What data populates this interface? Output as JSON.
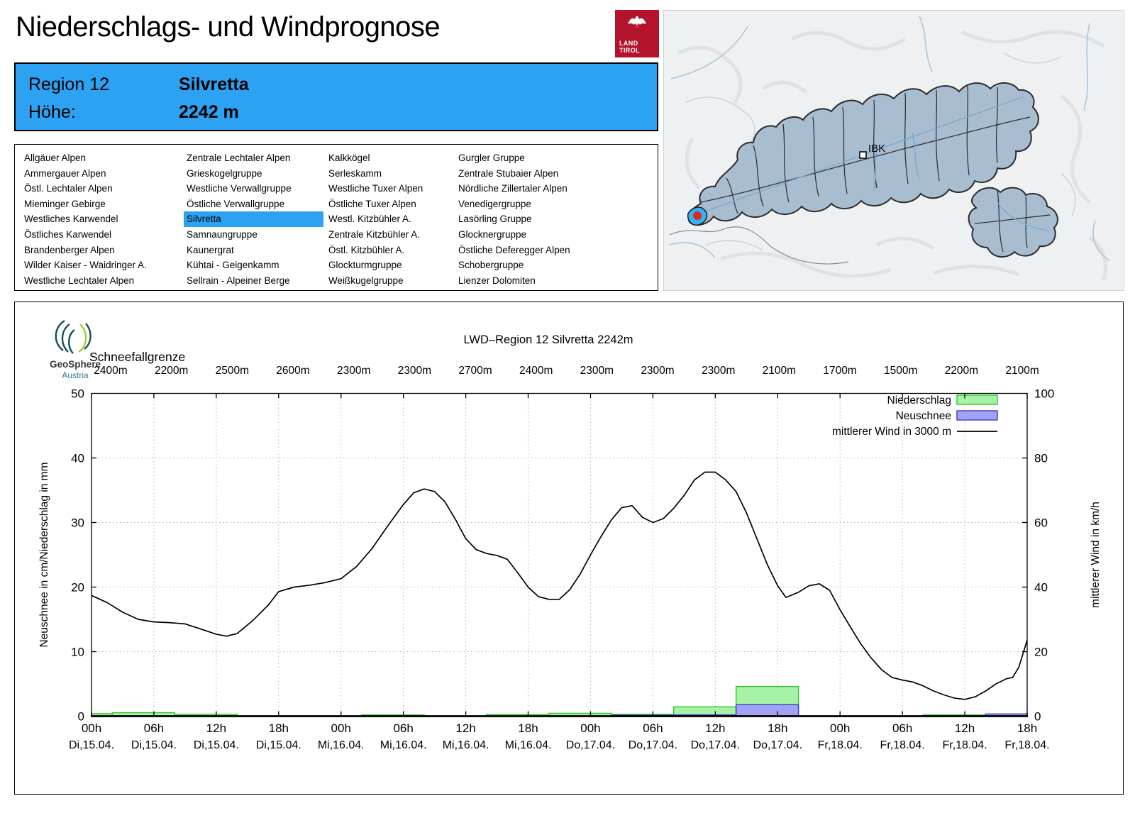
{
  "page": {
    "title": "Niederschlags- und Windprognose"
  },
  "logo_tirol": {
    "line1": "LAND",
    "line2": "TIROL"
  },
  "region_header": {
    "region_label": "Region 12",
    "region_name": "Silvretta",
    "altitude_label": "Höhe:",
    "altitude_value": "2242 m"
  },
  "region_list": {
    "selected": "Silvretta",
    "columns": [
      [
        "Allgäuer Alpen",
        "Ammergauer Alpen",
        "Östl. Lechtaler Alpen",
        "Mieminger Gebirge",
        "Westliches Karwendel",
        "Östliches Karwendel",
        "Brandenberger Alpen",
        "Wilder Kaiser - Waidringer A.",
        "Westliche Lechtaler Alpen"
      ],
      [
        "Zentrale Lechtaler Alpen",
        "Grieskogelgruppe",
        "Westliche Verwallgruppe",
        "Östliche Verwallgruppe",
        "Silvretta",
        "Samnaungruppe",
        "Kaunergrat",
        "Kühtai - Geigenkamm",
        "Sellrain - Alpeiner Berge"
      ],
      [
        "Kalkkögel",
        "Serleskamm",
        "Westliche Tuxer Alpen",
        "Östliche Tuxer Alpen",
        "Westl. Kitzbühler A.",
        "Zentrale Kitzbühler A.",
        "Östl. Kitzbühler A.",
        "Glockturmgruppe",
        "Weißkugelgruppe"
      ],
      [
        "Gurgler Gruppe",
        "Zentrale Stubaier Alpen",
        "Nördliche Zillertaler Alpen",
        "Venedigergruppe",
        "Lasörling Gruppe",
        "Glocknergruppe",
        "Östliche Deferegger Alpen",
        "Schobergruppe",
        "Lienzer Dolomiten"
      ]
    ]
  },
  "map": {
    "label_ibk": "IBK"
  },
  "geosphere": {
    "name": "GeoSphere",
    "sub": "Austria"
  },
  "colors": {
    "accent": "#2da2f2",
    "map_region_fill": "#a9bdd1",
    "map_highlight": "#35b1f5",
    "map_marker_red": "#e02818",
    "tirol_red": "#b3132b"
  },
  "chart_data": {
    "type": "bar+line",
    "title": "LWD–Region 12 Silvretta 2242m",
    "snowline_label": "Schneefallgrenze",
    "snowline_values": [
      "2400m",
      "2200m",
      "2500m",
      "2600m",
      "2300m",
      "2300m",
      "2700m",
      "2400m",
      "2300m",
      "2300m",
      "2300m",
      "2100m",
      "1700m",
      "1500m",
      "2200m",
      "2100m"
    ],
    "ylabel_left": "Neuschnee in cm/Niederschlag in mm",
    "ylabel_right": "mittlerer Wind in km/h",
    "ylim_left": [
      0,
      50
    ],
    "ylim_right": [
      0,
      100
    ],
    "yticks_left": [
      0,
      10,
      20,
      30,
      40,
      50
    ],
    "yticks_right": [
      0,
      20,
      40,
      60,
      80,
      100
    ],
    "xlim_hours": [
      0,
      90
    ],
    "grid": "dotted",
    "legend_position": "top-right",
    "xticks": [
      {
        "hour": 0,
        "time": "00h",
        "date": "Di,15.04."
      },
      {
        "hour": 6,
        "time": "06h",
        "date": "Di,15.04."
      },
      {
        "hour": 12,
        "time": "12h",
        "date": "Di,15.04."
      },
      {
        "hour": 18,
        "time": "18h",
        "date": "Di,15.04."
      },
      {
        "hour": 24,
        "time": "00h",
        "date": "Mi,16.04."
      },
      {
        "hour": 30,
        "time": "06h",
        "date": "Mi,16.04."
      },
      {
        "hour": 36,
        "time": "12h",
        "date": "Mi,16.04."
      },
      {
        "hour": 42,
        "time": "18h",
        "date": "Mi,16.04."
      },
      {
        "hour": 48,
        "time": "00h",
        "date": "Do,17.04."
      },
      {
        "hour": 54,
        "time": "06h",
        "date": "Do,17.04."
      },
      {
        "hour": 60,
        "time": "12h",
        "date": "Do,17.04."
      },
      {
        "hour": 66,
        "time": "18h",
        "date": "Do,17.04."
      },
      {
        "hour": 72,
        "time": "00h",
        "date": "Fr,18.04."
      },
      {
        "hour": 78,
        "time": "06h",
        "date": "Fr,18.04."
      },
      {
        "hour": 84,
        "time": "12h",
        "date": "Fr,18.04."
      },
      {
        "hour": 90,
        "time": "18h",
        "date": "Fr,18.04."
      }
    ],
    "legend": [
      {
        "label": "Niederschlag",
        "type": "box",
        "fill": "#a8f2a8",
        "stroke": "#2ec62e"
      },
      {
        "label": "Neuschnee",
        "type": "box",
        "fill": "#a2a2f2",
        "stroke": "#3a3ad0"
      },
      {
        "label": "mittlerer Wind in 3000 m",
        "type": "line",
        "stroke": "#000000"
      }
    ],
    "colors": {
      "niederschlag_fill": "#a8f2a8",
      "niederschlag_stroke": "#2ec62e",
      "neuschnee_fill": "#a2a2f2",
      "neuschnee_stroke": "#3a3ad0",
      "wind": "#000000",
      "grid": "#b4b4b4"
    },
    "precip_bars": [
      {
        "from_h": 0,
        "to_h": 2,
        "niederschlag_mm": 0.4,
        "neuschnee_cm": 0
      },
      {
        "from_h": 2,
        "to_h": 8,
        "niederschlag_mm": 0.55,
        "neuschnee_cm": 0
      },
      {
        "from_h": 8,
        "to_h": 14,
        "niederschlag_mm": 0.3,
        "neuschnee_cm": 0
      },
      {
        "from_h": 26,
        "to_h": 32,
        "niederschlag_mm": 0.2,
        "neuschnee_cm": 0
      },
      {
        "from_h": 38,
        "to_h": 44,
        "niederschlag_mm": 0.25,
        "neuschnee_cm": 0
      },
      {
        "from_h": 44,
        "to_h": 50,
        "niederschlag_mm": 0.45,
        "neuschnee_cm": 0
      },
      {
        "from_h": 50,
        "to_h": 56,
        "niederschlag_mm": 0.3,
        "neuschnee_cm": 0.15
      },
      {
        "from_h": 56,
        "to_h": 62,
        "niederschlag_mm": 1.45,
        "neuschnee_cm": 0.2
      },
      {
        "from_h": 62,
        "to_h": 68,
        "niederschlag_mm": 4.6,
        "neuschnee_cm": 1.8
      },
      {
        "from_h": 80,
        "to_h": 86,
        "niederschlag_mm": 0.2,
        "neuschnee_cm": 0
      },
      {
        "from_h": 86,
        "to_h": 90,
        "niederschlag_mm": 0.2,
        "neuschnee_cm": 0.35
      }
    ],
    "wind_line_kmh": [
      [
        0,
        37.4
      ],
      [
        1.5,
        35.2
      ],
      [
        3,
        32.2
      ],
      [
        4.5,
        30
      ],
      [
        6,
        29.2
      ],
      [
        7.5,
        29
      ],
      [
        9,
        28.6
      ],
      [
        10.5,
        27
      ],
      [
        12,
        25.4
      ],
      [
        13,
        24.8
      ],
      [
        14,
        25.6
      ],
      [
        15.5,
        29.6
      ],
      [
        17,
        34.4
      ],
      [
        18,
        38.6
      ],
      [
        19.5,
        40
      ],
      [
        21,
        40.6
      ],
      [
        22.5,
        41.4
      ],
      [
        24,
        42.6
      ],
      [
        25.5,
        46.4
      ],
      [
        27,
        52
      ],
      [
        28.5,
        59
      ],
      [
        30,
        65.6
      ],
      [
        31,
        69.2
      ],
      [
        32,
        70.4
      ],
      [
        33,
        69.6
      ],
      [
        34,
        66.4
      ],
      [
        35,
        61
      ],
      [
        36,
        55
      ],
      [
        37,
        51.6
      ],
      [
        38,
        50.4
      ],
      [
        39,
        49.8
      ],
      [
        40,
        48.6
      ],
      [
        41,
        44.4
      ],
      [
        42,
        40
      ],
      [
        43,
        37
      ],
      [
        44,
        36.2
      ],
      [
        45,
        36.2
      ],
      [
        46,
        39.2
      ],
      [
        47,
        44
      ],
      [
        48,
        50
      ],
      [
        49,
        55.6
      ],
      [
        50,
        60.8
      ],
      [
        51,
        64.6
      ],
      [
        52,
        65.2
      ],
      [
        53,
        61.6
      ],
      [
        54,
        60
      ],
      [
        55,
        61.2
      ],
      [
        56,
        64.4
      ],
      [
        57,
        68.4
      ],
      [
        58,
        73.2
      ],
      [
        59,
        75.6
      ],
      [
        60,
        75.6
      ],
      [
        61,
        73.2
      ],
      [
        62,
        69.6
      ],
      [
        63,
        63
      ],
      [
        64,
        55
      ],
      [
        65,
        47
      ],
      [
        66,
        40.4
      ],
      [
        66.8,
        36.8
      ],
      [
        68,
        38.4
      ],
      [
        69,
        40.4
      ],
      [
        70,
        41
      ],
      [
        71,
        39
      ],
      [
        72,
        33
      ],
      [
        73,
        27.6
      ],
      [
        74,
        22.4
      ],
      [
        75,
        18
      ],
      [
        76,
        14.4
      ],
      [
        77,
        12
      ],
      [
        78,
        11.2
      ],
      [
        79,
        10.6
      ],
      [
        80,
        9.4
      ],
      [
        81,
        7.8
      ],
      [
        82,
        6.6
      ],
      [
        83,
        5.6
      ],
      [
        84,
        5.2
      ],
      [
        85,
        6
      ],
      [
        86,
        7.8
      ],
      [
        87,
        10
      ],
      [
        88,
        11.6
      ],
      [
        88.6,
        12
      ],
      [
        89.2,
        15.2
      ],
      [
        90,
        23.6
      ]
    ]
  }
}
